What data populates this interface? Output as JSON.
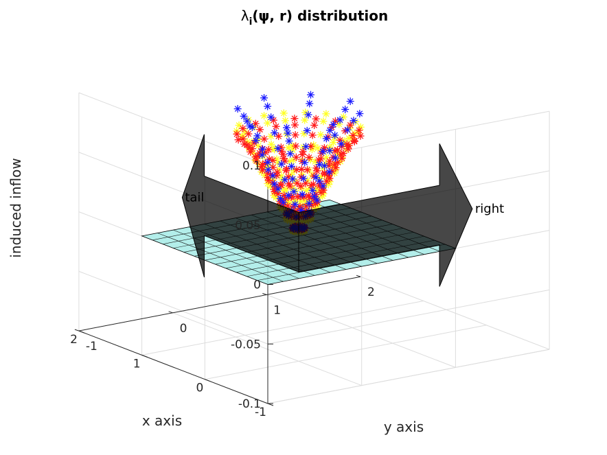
{
  "chart_data": {
    "type": "scatter",
    "title_prefix": "λ",
    "title_sub": "i",
    "title_rest": "(ψ, r) distribution",
    "xlabel": "x axis",
    "ylabel": "y axis",
    "zlabel": "induced inflow",
    "xlim": [
      -1,
      2
    ],
    "ylim": [
      -1,
      2
    ],
    "zlim": [
      -0.1,
      0.1
    ],
    "x_ticks": [
      {
        "v": -1,
        "label": "-1"
      },
      {
        "v": 0,
        "label": "0"
      },
      {
        "v": 1,
        "label": "1"
      },
      {
        "v": 2,
        "label": "2"
      }
    ],
    "y_ticks": [
      {
        "v": -1,
        "label": "-1"
      },
      {
        "v": 0,
        "label": "0"
      },
      {
        "v": 1,
        "label": "1"
      },
      {
        "v": 2,
        "label": "2"
      }
    ],
    "z_ticks": [
      {
        "v": -0.1,
        "label": "-0.1"
      },
      {
        "v": -0.05,
        "label": "-0.05"
      },
      {
        "v": 0,
        "label": "0"
      },
      {
        "v": 0.05,
        "label": "0.05"
      },
      {
        "v": 0.1,
        "label": "0.1"
      }
    ],
    "grid": true,
    "rotor_plane": {
      "x_range": [
        -1,
        1
      ],
      "y_range": [
        -1,
        1
      ],
      "z": 0,
      "divisions": 12,
      "color": "#a6ebe6"
    },
    "series": [
      {
        "marker": "*",
        "color": "#ffff26",
        "blade_angles_deg": [
          0,
          20,
          40,
          60,
          80,
          100,
          120,
          140,
          160,
          180,
          200,
          220,
          240,
          260,
          280,
          300,
          320,
          340
        ],
        "radii": [
          0.1,
          0.2,
          0.3,
          0.4,
          0.5,
          0.6,
          0.7,
          0.8,
          0.9,
          1.0
        ],
        "z_values": [
          0.01,
          0.02,
          0.03,
          0.04,
          0.05,
          0.06,
          0.07,
          0.08,
          0.09,
          0.095
        ]
      },
      {
        "marker": "*",
        "color": "#ff1a1a",
        "blade_angles_deg": [
          10,
          30,
          50,
          70,
          90,
          110,
          130,
          150,
          170,
          190,
          210,
          230,
          250,
          270,
          290,
          310,
          330,
          350
        ],
        "radii": [
          0.1,
          0.2,
          0.3,
          0.4,
          0.5,
          0.6,
          0.7,
          0.8,
          0.9,
          1.0
        ],
        "z_values": [
          0.012,
          0.024,
          0.034,
          0.044,
          0.054,
          0.063,
          0.071,
          0.079,
          0.086,
          0.09
        ]
      },
      {
        "marker": "*",
        "color": "#1a1aff",
        "blade_angles_deg": [
          45,
          135,
          225,
          315,
          90,
          180,
          270,
          0
        ],
        "radii": [
          0.1,
          0.2,
          0.3,
          0.4,
          0.5,
          0.6,
          0.7,
          0.8,
          0.9,
          1.0
        ],
        "z_values": [
          0.012,
          0.024,
          0.036,
          0.048,
          0.06,
          0.072,
          0.084,
          0.096,
          0.104,
          0.11
        ]
      }
    ],
    "annotations": [
      {
        "label": "tail",
        "direction": "x",
        "from": [
          0,
          0,
          0
        ],
        "to": [
          1.5,
          0,
          0
        ]
      },
      {
        "label": "right",
        "direction": "y",
        "from": [
          0,
          0,
          0
        ],
        "to": [
          0,
          1.5,
          0
        ]
      }
    ]
  }
}
